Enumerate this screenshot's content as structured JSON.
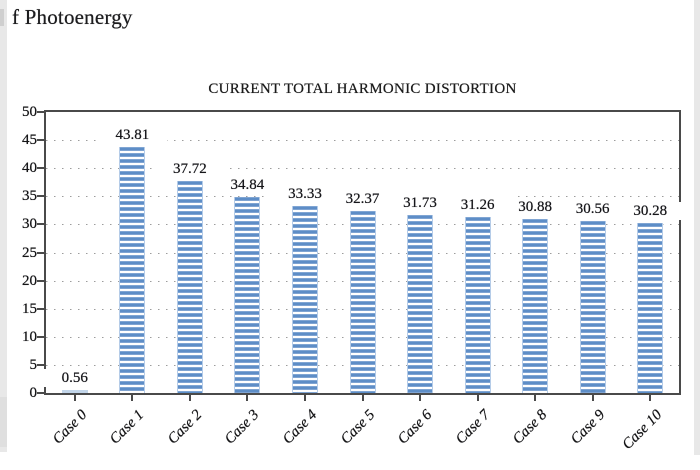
{
  "page": {
    "header_fragment": "f Photoenergy"
  },
  "chart_data": {
    "type": "bar",
    "title": "CURRENT TOTAL HARMONIC DISTORTION",
    "categories": [
      "Case 0",
      "Case 1",
      "Case 2",
      "Case 3",
      "Case 4",
      "Case 5",
      "Case 6",
      "Case 7",
      "Case 8",
      "Case 9",
      "Case 10"
    ],
    "values": [
      0.56,
      43.81,
      37.72,
      34.84,
      33.33,
      32.37,
      31.73,
      31.26,
      30.88,
      30.56,
      30.28
    ],
    "value_labels": [
      "0.56",
      "43.81",
      "37.72",
      "34.84",
      "33.33",
      "32.37",
      "31.73",
      "31.26",
      "30.88",
      "30.56",
      "30.28"
    ],
    "xlabel": "",
    "ylabel": "",
    "ylim": [
      0,
      50
    ],
    "ytick_step": 5,
    "ytick_labels": [
      "0",
      "5",
      "10",
      "15",
      "20",
      "25",
      "30",
      "35",
      "40",
      "45",
      "50"
    ],
    "grid": "dotted-horizontal",
    "legend": "none",
    "bar_pattern": "horizontal-stripes",
    "colors": {
      "bar": "#4a7dbd",
      "bar_light": "#b5cce8",
      "bar_small": "#c3d6ea",
      "axis": "#4a4a4a",
      "grid_dots": "#9c9c9c",
      "text": "#1b1b1b",
      "page_edge": "#e8e8e8"
    }
  }
}
